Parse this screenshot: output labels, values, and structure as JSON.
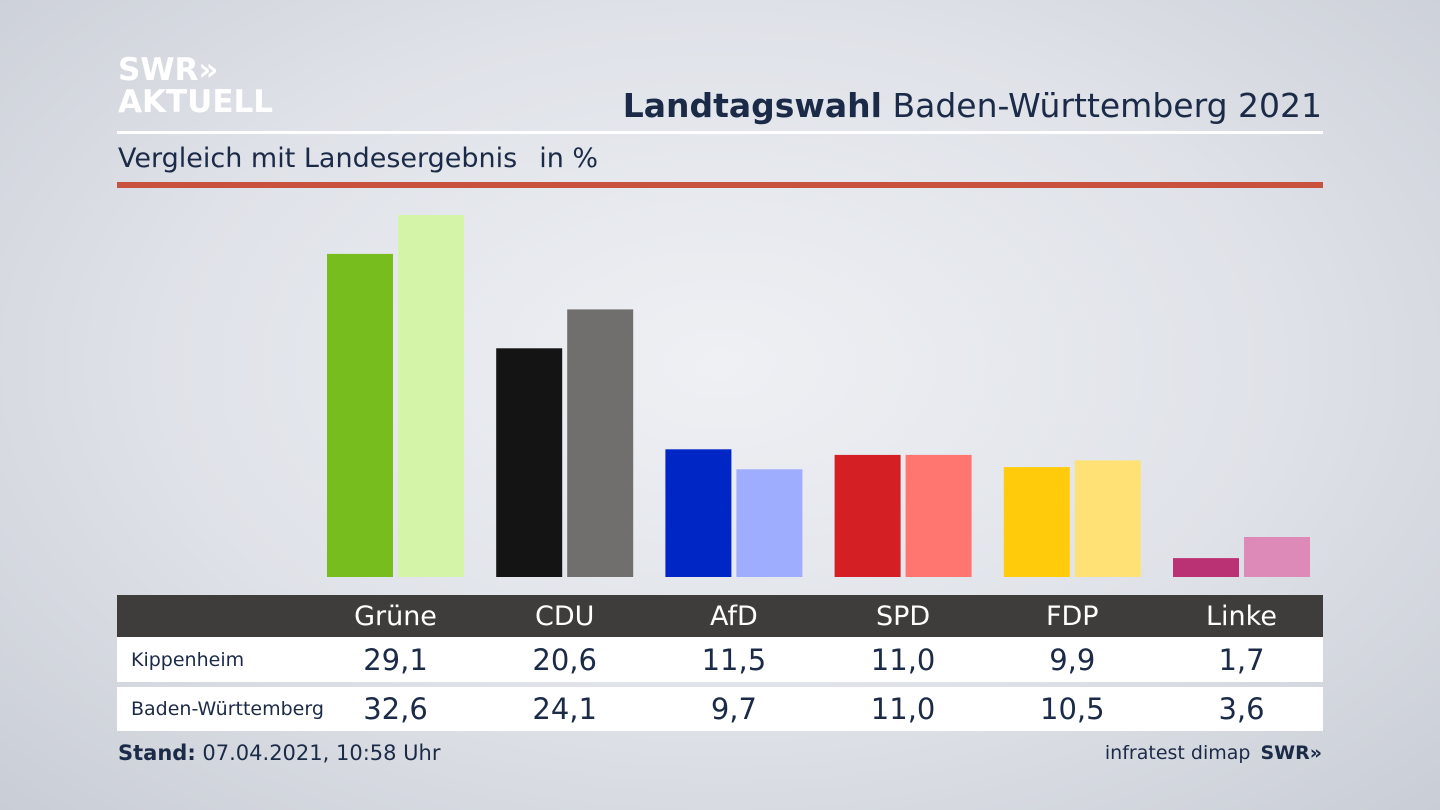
{
  "logo": {
    "line1": "SWR»",
    "line2": "AKTUELL"
  },
  "title": {
    "bold": "Landtagswahl",
    "rest": " Baden-Württemberg 2021"
  },
  "subtitle": {
    "text": "Vergleich mit Landesergebnis",
    "unit": "in %"
  },
  "chart_data": {
    "type": "bar",
    "categories": [
      "Grüne",
      "CDU",
      "AfD",
      "SPD",
      "FDP",
      "Linke"
    ],
    "series": [
      {
        "name": "Kippenheim",
        "values": [
          29.1,
          20.6,
          11.5,
          11.0,
          9.9,
          1.7
        ],
        "colors": [
          "#78bd1e",
          "#141414",
          "#0026c5",
          "#d41f24",
          "#ffcb0a",
          "#ba3273"
        ]
      },
      {
        "name": "Baden-Württemberg",
        "values": [
          32.6,
          24.1,
          9.7,
          11.0,
          10.5,
          3.6
        ],
        "colors": [
          "#d4f4a8",
          "#716f6d",
          "#9fadff",
          "#ff7570",
          "#ffe176",
          "#dd8ab9"
        ]
      }
    ],
    "ylim": [
      0,
      32.6
    ],
    "grid": false
  },
  "table": {
    "headers": [
      "Grüne",
      "CDU",
      "AfD",
      "SPD",
      "FDP",
      "Linke"
    ],
    "rows": [
      {
        "label": "Kippenheim",
        "values": [
          "29,1",
          "20,6",
          "11,5",
          "11,0",
          "9,9",
          "1,7"
        ]
      },
      {
        "label": "Baden-Württemberg",
        "values": [
          "32,6",
          "24,1",
          "9,7",
          "11,0",
          "10,5",
          "3,6"
        ]
      }
    ]
  },
  "footer": {
    "stand_label": "Stand:",
    "stand_value": " 07.04.2021, 10:58 Uhr",
    "source": "infratest dimap",
    "brand": "SWR»"
  }
}
